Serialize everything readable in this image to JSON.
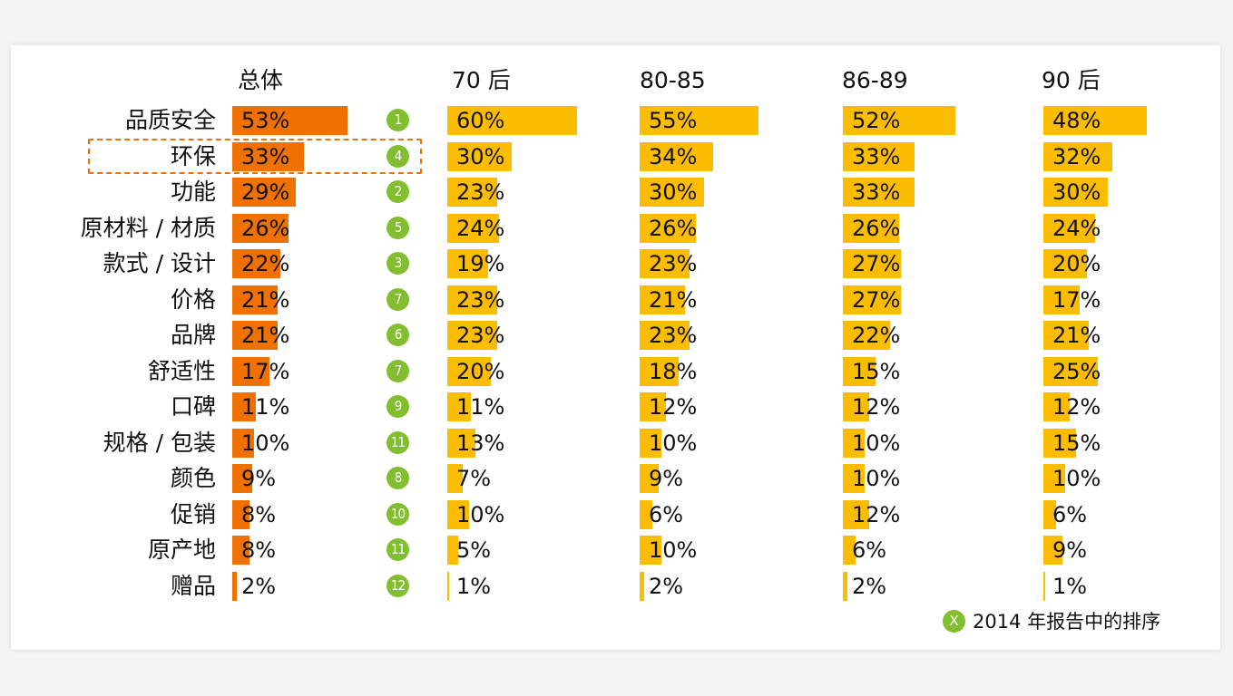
{
  "chart_data": {
    "type": "bar",
    "orientation": "horizontal",
    "categories": [
      "品质安全",
      "环保",
      "功能",
      "原材料 / 材质",
      "款式 / 设计",
      "价格",
      "品牌",
      "舒适性",
      "口碑",
      "规格 / 包装",
      "颜色",
      "促销",
      "原产地",
      "赠品"
    ],
    "series": [
      {
        "name": "总体",
        "values": [
          53,
          33,
          29,
          26,
          22,
          21,
          21,
          17,
          11,
          10,
          9,
          8,
          8,
          2
        ],
        "color": "#f07000"
      },
      {
        "name": "70 后",
        "values": [
          60,
          30,
          23,
          24,
          19,
          23,
          23,
          20,
          11,
          13,
          7,
          10,
          5,
          1
        ],
        "color": "#fcbd00"
      },
      {
        "name": "80-85",
        "values": [
          55,
          34,
          30,
          26,
          23,
          21,
          23,
          18,
          12,
          10,
          9,
          6,
          10,
          2
        ],
        "color": "#fcbd00"
      },
      {
        "name": "86-89",
        "values": [
          52,
          33,
          33,
          26,
          27,
          27,
          22,
          15,
          12,
          10,
          10,
          12,
          6,
          2
        ],
        "color": "#fcbd00"
      },
      {
        "name": "90 后",
        "values": [
          48,
          32,
          30,
          24,
          20,
          17,
          21,
          25,
          12,
          15,
          10,
          6,
          9,
          1
        ],
        "color": "#fcbd00"
      }
    ],
    "value_suffix": "%",
    "ranks_2014": [
      "1",
      "4",
      "2",
      "5",
      "3",
      "7",
      "6",
      "7",
      "9",
      "11",
      "8",
      "10",
      "11",
      "12"
    ],
    "rank_color": "#82be30",
    "highlighted_category": "环保",
    "highlight_color": "#f07000",
    "legend": {
      "symbol": "X",
      "label": "2014 年报告中的排序"
    }
  }
}
